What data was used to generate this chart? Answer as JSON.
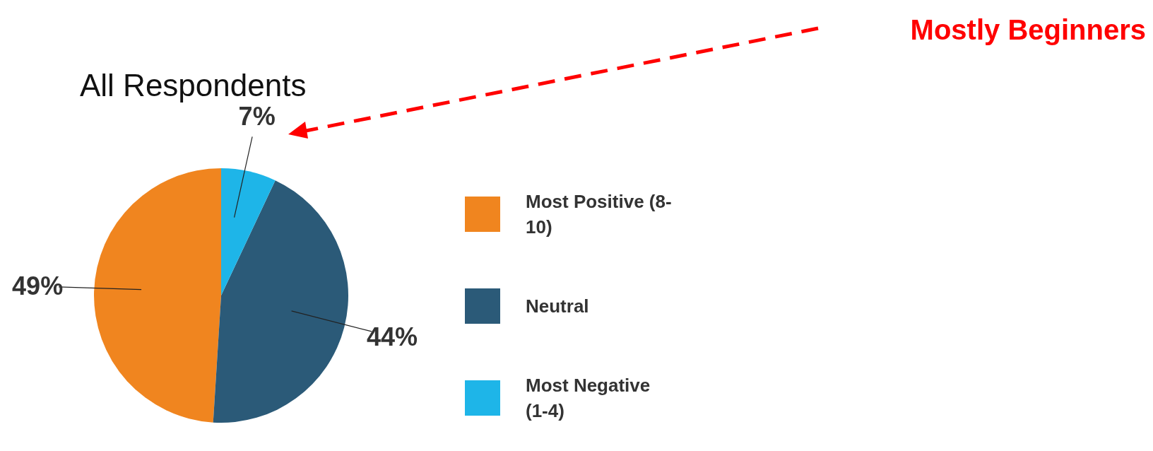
{
  "chart_data": {
    "type": "pie",
    "title": "All Respondents",
    "categories": [
      "Most Positive (8-10)",
      "Neutral",
      "Most Negative (1-4)"
    ],
    "values": [
      49,
      44,
      7
    ],
    "colors": [
      "#f0851f",
      "#2b5a78",
      "#1eb5e8"
    ],
    "value_labels": [
      "49%",
      "44%",
      "7%"
    ],
    "legend": "right",
    "annotations": [
      "Mostly Beginners"
    ]
  }
}
